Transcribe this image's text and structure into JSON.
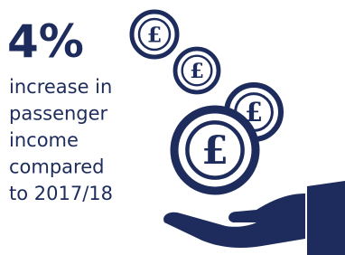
{
  "stat": {
    "value": "4%",
    "description": [
      "increase in",
      "passenger",
      "income",
      "compared",
      "to 2017/18"
    ]
  },
  "coin_symbol": "£"
}
